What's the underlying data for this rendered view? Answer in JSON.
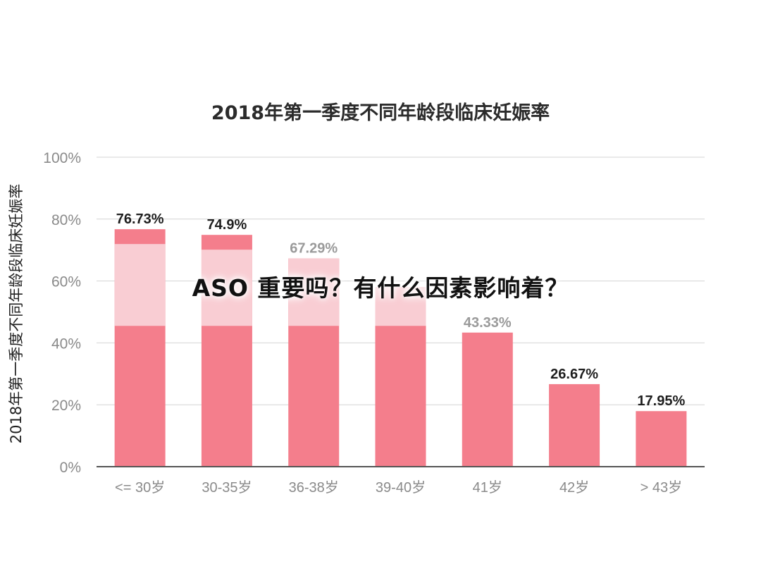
{
  "chart_data": {
    "type": "bar",
    "title": "2018年第一季度不同年龄段临床妊娠率",
    "xlabel": "",
    "ylabel": "2018年第一季度不同年龄段临床妊娠率",
    "categories": [
      "<= 30岁",
      "30-35岁",
      "36-38岁",
      "39-40岁",
      "41岁",
      "42岁",
      "> 43岁"
    ],
    "values": [
      76.73,
      74.9,
      67.29,
      58.0,
      43.33,
      26.67,
      17.95
    ],
    "value_labels": [
      "76.73%",
      "74.9%",
      "67.29%",
      "",
      "43.33%",
      "26.67%",
      "17.95%"
    ],
    "ylim": [
      0,
      100
    ],
    "yticks": [
      "0%",
      "20%",
      "40%",
      "60%",
      "80%",
      "100%"
    ],
    "grid": true,
    "colors": {
      "bar": "#f47e8c",
      "bar_light": "#f9cdd3",
      "grid": "#d4d4d4",
      "axis": "#555555"
    }
  },
  "overlay_text": "ASO 重要吗？有什么因素影响着？"
}
